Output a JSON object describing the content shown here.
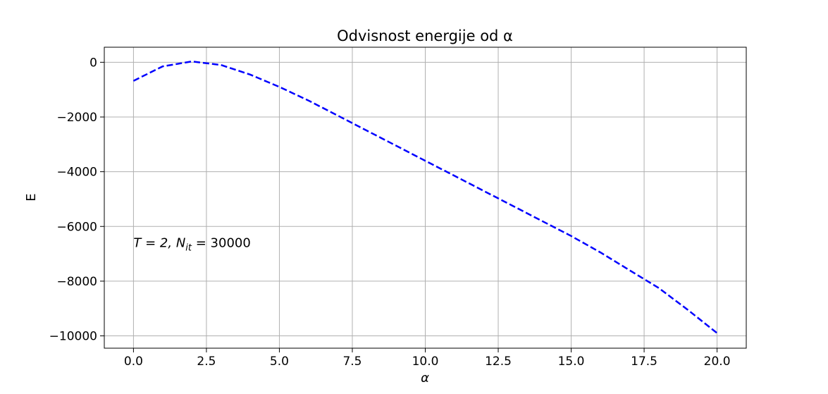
{
  "chart_data": {
    "type": "line",
    "title": "Odvisnost energije od α",
    "xlabel": "α",
    "ylabel": "E",
    "xlim": [
      -1.0,
      21.0
    ],
    "ylim": [
      -10450,
      550
    ],
    "x_ticks": [
      0,
      2.5,
      5,
      7.5,
      10,
      12.5,
      15,
      17.5,
      20
    ],
    "x_tick_labels": [
      "0.0",
      "2.5",
      "5.0",
      "7.5",
      "10.0",
      "12.5",
      "15.0",
      "17.5",
      "20.0"
    ],
    "y_ticks": [
      0,
      -2000,
      -4000,
      -6000,
      -8000,
      -10000
    ],
    "y_tick_labels": [
      "0",
      "−2000",
      "−4000",
      "−6000",
      "−8000",
      "−10000"
    ],
    "grid": true,
    "annotation": {
      "text_T": "T = 2, ",
      "text_N": "N",
      "text_sub": "it",
      "text_value": " = 30000",
      "x": 0.0,
      "y": -6750
    },
    "series": [
      {
        "color": "#0000ff",
        "linestyle": "dashed",
        "x": [
          0,
          1,
          2,
          3,
          4,
          5,
          6,
          7,
          8,
          9,
          10,
          11,
          12,
          13,
          14,
          15,
          16,
          17,
          18,
          19,
          20
        ],
        "values": [
          -680,
          -150,
          30,
          -100,
          -450,
          -900,
          -1400,
          -1950,
          -2500,
          -3050,
          -3600,
          -4150,
          -4700,
          -5250,
          -5800,
          -6350,
          -6950,
          -7600,
          -8250,
          -9050,
          -9900
        ]
      }
    ]
  }
}
